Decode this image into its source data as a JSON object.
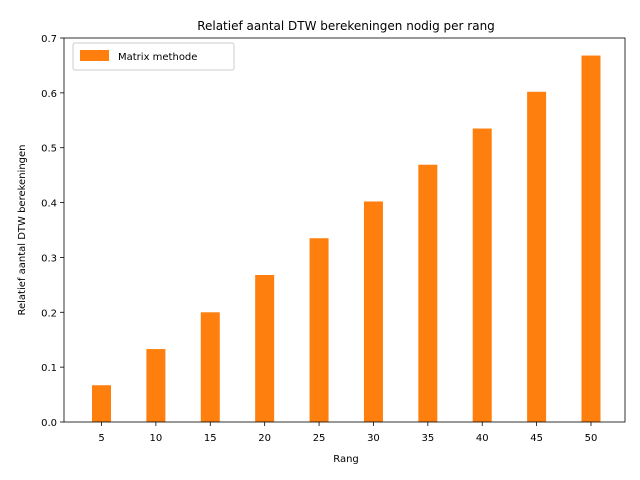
{
  "chart_data": {
    "type": "bar",
    "title": "Relatief aantal DTW berekeningen nodig per rang",
    "xlabel": "Rang",
    "ylabel": "Relatief aantal DTW berekeningen",
    "categories": [
      "5",
      "10",
      "15",
      "20",
      "25",
      "30",
      "35",
      "40",
      "45",
      "50"
    ],
    "series": [
      {
        "name": "Matrix methode",
        "color": "#ff7f0e",
        "values": [
          0.067,
          0.133,
          0.2,
          0.268,
          0.335,
          0.402,
          0.469,
          0.535,
          0.602,
          0.668
        ]
      }
    ],
    "ylim": [
      0,
      0.7
    ],
    "yticks": [
      "0.0",
      "0.1",
      "0.2",
      "0.3",
      "0.4",
      "0.5",
      "0.6",
      "0.7"
    ],
    "legend_position": "top-left",
    "grid": false
  }
}
